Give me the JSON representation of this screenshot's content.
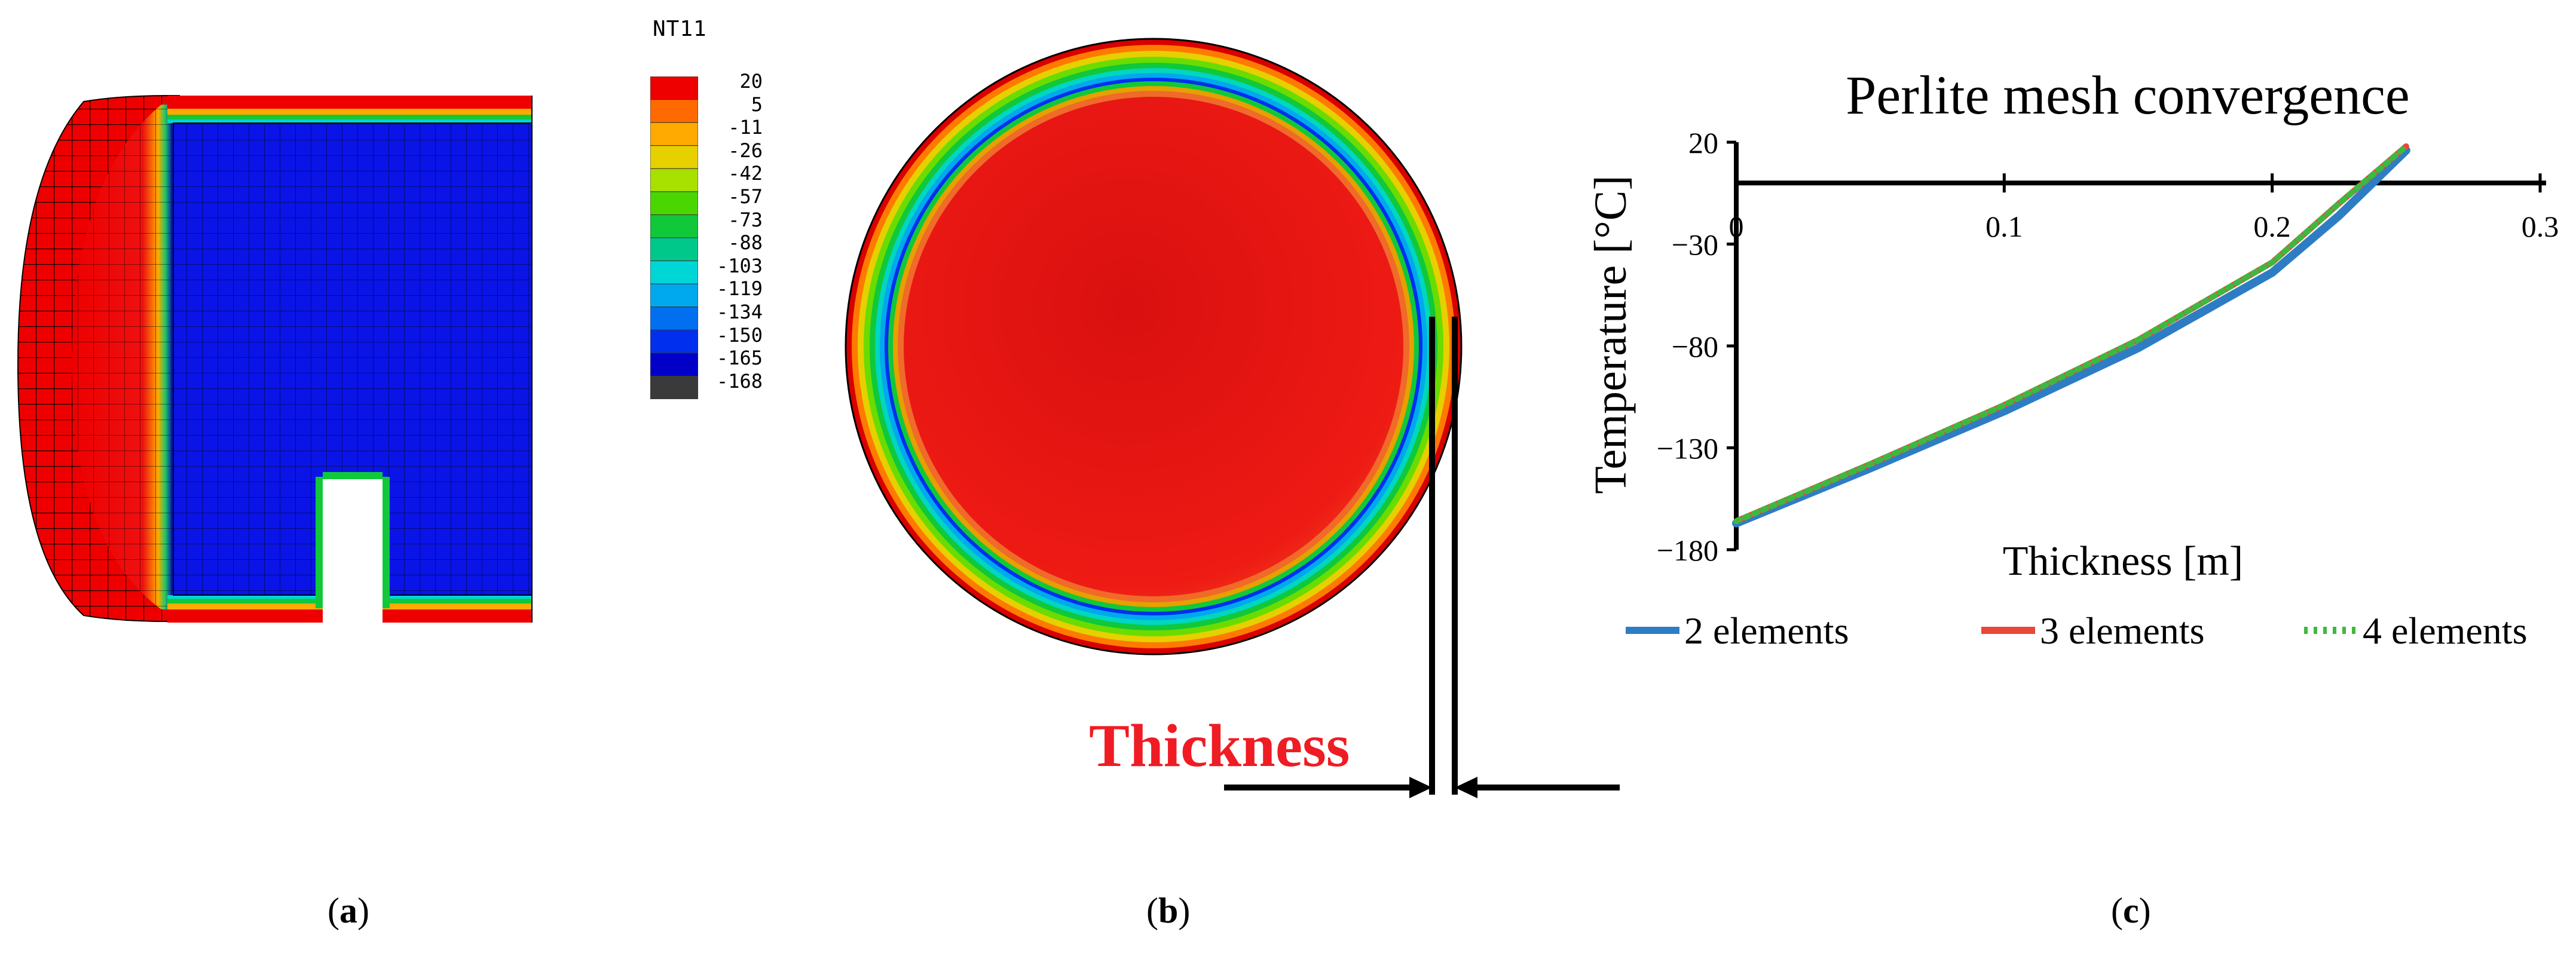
{
  "panel_a": {
    "caption_open": "(",
    "caption_letter": "a",
    "caption_close": ")",
    "legend_title": "NT11",
    "legend_levels": [
      "20",
      "5",
      "-11",
      "-26",
      "-42",
      "-57",
      "-73",
      "-88",
      "-103",
      "-119",
      "-134",
      "-150",
      "-165",
      "-168"
    ],
    "legend_colors": [
      "#ee0000",
      "#ff6a00",
      "#ffaa00",
      "#e6d000",
      "#a8e000",
      "#4ad600",
      "#10c83a",
      "#00c88a",
      "#00d6d6",
      "#00a8ee",
      "#0070f0",
      "#0030ee",
      "#0000c8",
      "#3a3a3a"
    ]
  },
  "panel_b": {
    "caption_open": "(",
    "caption_letter": "b",
    "caption_close": ")",
    "thickness_label": "Thickness"
  },
  "chart_data": {
    "type": "line",
    "title": "Perlite mesh convergence",
    "xlabel": "Thickness [m]",
    "ylabel": "Temperature [°C]",
    "xlim": [
      0,
      0.3
    ],
    "ylim": [
      -180,
      20
    ],
    "xticks": [
      "0",
      "0.1",
      "0.2",
      "0.3"
    ],
    "yticks": [
      "20",
      "-30",
      "-80",
      "-130",
      "-180"
    ],
    "x": [
      0,
      0.05,
      0.1,
      0.15,
      0.2,
      0.225,
      0.25
    ],
    "series": [
      {
        "name": "2 elements",
        "color": "#2e7dc4",
        "style": "solid",
        "values": [
          -167,
          -140,
          -112,
          -81,
          -44,
          -16,
          16
        ]
      },
      {
        "name": "3 elements",
        "color": "#e8473a",
        "style": "solid",
        "values": [
          -166,
          -138,
          -109,
          -77,
          -39,
          -10,
          18
        ]
      },
      {
        "name": "4 elements",
        "color": "#3fb83f",
        "style": "dotted",
        "values": [
          -166,
          -138,
          -109,
          -77,
          -39,
          -10,
          18
        ]
      }
    ],
    "legend_position": "bottom",
    "grid": false,
    "caption_open": "(",
    "caption_letter": "c",
    "caption_close": ")"
  }
}
